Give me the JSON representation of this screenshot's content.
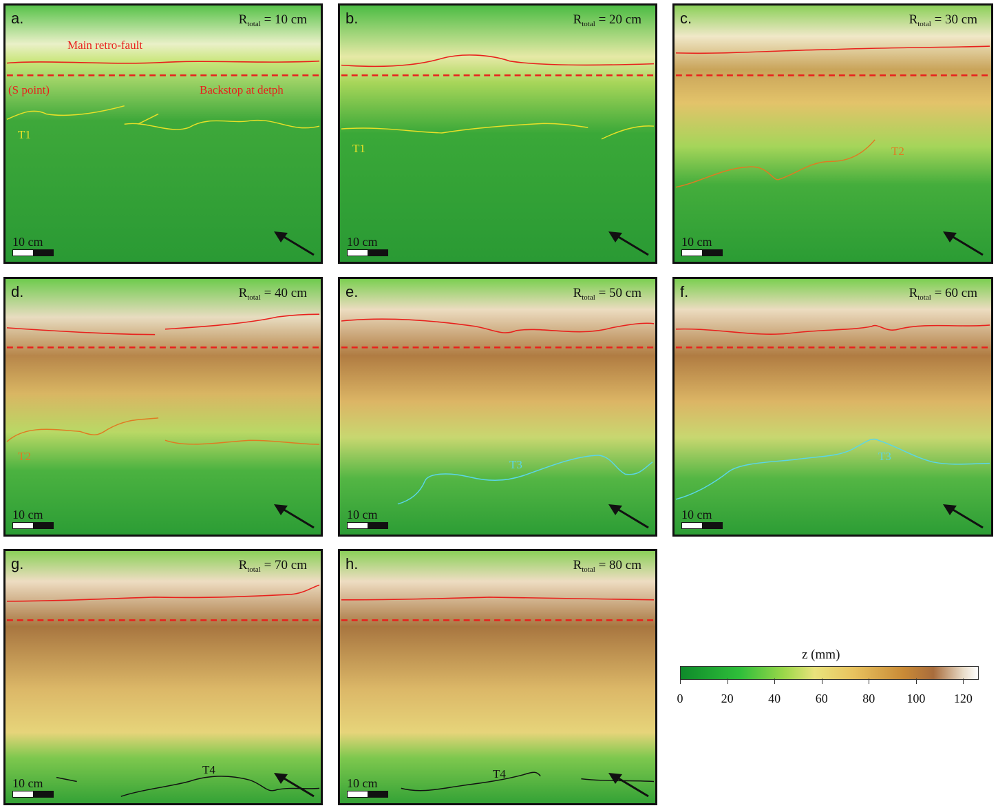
{
  "panels": [
    {
      "id": "a",
      "label": "a.",
      "r_prefix": "R",
      "r_sub": "total",
      "r_value": "= 10 cm",
      "scale": "10 cm",
      "annotations": [
        {
          "text": "Main retro-fault",
          "color": "#e8201c"
        },
        {
          "text": "(S point)",
          "color": "#e8201c"
        },
        {
          "text": "Backstop at detph",
          "color": "#e8201c"
        },
        {
          "text": "T1",
          "color": "#e8e028"
        }
      ]
    },
    {
      "id": "b",
      "label": "b.",
      "r_prefix": "R",
      "r_sub": "total",
      "r_value": "= 20 cm",
      "scale": "10 cm",
      "annotations": [
        {
          "text": "T1",
          "color": "#e8e028"
        }
      ]
    },
    {
      "id": "c",
      "label": "c.",
      "r_prefix": "R",
      "r_sub": "total",
      "r_value": "= 30 cm",
      "scale": "10 cm",
      "annotations": [
        {
          "text": "T2",
          "color": "#e07a22"
        }
      ]
    },
    {
      "id": "d",
      "label": "d.",
      "r_prefix": "R",
      "r_sub": "total",
      "r_value": "= 40 cm",
      "scale": "10 cm",
      "annotations": [
        {
          "text": "T2",
          "color": "#e07a22"
        }
      ]
    },
    {
      "id": "e",
      "label": "e.",
      "r_prefix": "R",
      "r_sub": "total",
      "r_value": "= 50 cm",
      "scale": "10 cm",
      "annotations": [
        {
          "text": "T3",
          "color": "#5ad6e8"
        }
      ]
    },
    {
      "id": "f",
      "label": "f.",
      "r_prefix": "R",
      "r_sub": "total",
      "r_value": "= 60 cm",
      "scale": "10 cm",
      "annotations": [
        {
          "text": "T3",
          "color": "#5ad6e8"
        }
      ]
    },
    {
      "id": "g",
      "label": "g.",
      "r_prefix": "R",
      "r_sub": "total",
      "r_value": "= 70 cm",
      "scale": "10 cm",
      "annotations": [
        {
          "text": "T4",
          "color": "#111111"
        }
      ]
    },
    {
      "id": "h",
      "label": "h.",
      "r_prefix": "R",
      "r_sub": "total",
      "r_value": "= 80 cm",
      "scale": "10 cm",
      "annotations": [
        {
          "text": "T4",
          "color": "#111111"
        }
      ]
    }
  ],
  "colorbar": {
    "title": "z (mm)",
    "ticks": [
      "0",
      "20",
      "40",
      "60",
      "80",
      "100",
      "120"
    ],
    "range": [
      0,
      126
    ],
    "colors": [
      "#0e8a2a",
      "#2fbf3a",
      "#9dd84a",
      "#e9e37c",
      "#e8c35f",
      "#c98a36",
      "#a86c3c",
      "#e9dcc8",
      "#ffffff"
    ]
  }
}
